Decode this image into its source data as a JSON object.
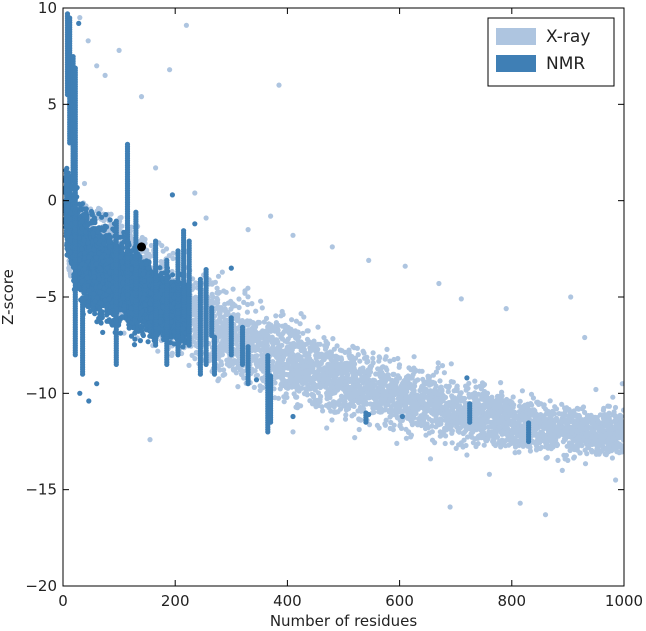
{
  "chart_data": {
    "type": "scatter",
    "xlabel": "Number of residues",
    "ylabel": "Z-score",
    "xlim": [
      0,
      1000
    ],
    "ylim": [
      -20,
      10
    ],
    "xticks": [
      0,
      200,
      400,
      600,
      800,
      1000
    ],
    "yticks": [
      10,
      5,
      0,
      -5,
      -10,
      -15,
      -20
    ],
    "legend_position": "top-right",
    "grid": false,
    "series": [
      {
        "name": "X-ray",
        "color": "#aec5e0",
        "trend": {
          "x": [
            10,
            100,
            200,
            300,
            400,
            500,
            600,
            700,
            800,
            900,
            1000
          ],
          "center": [
            -1.5,
            -3.5,
            -5.5,
            -7.0,
            -8.3,
            -9.3,
            -10.2,
            -10.9,
            -11.5,
            -11.9,
            -12.2
          ],
          "spread": [
            2.5,
            3.0,
            2.8,
            2.6,
            2.5,
            2.3,
            2.1,
            2.0,
            1.8,
            1.7,
            1.6
          ]
        },
        "outliers": [
          [
            30,
            9.5
          ],
          [
            45,
            8.3
          ],
          [
            60,
            7.0
          ],
          [
            75,
            6.5
          ],
          [
            100,
            7.8
          ],
          [
            140,
            5.4
          ],
          [
            190,
            6.8
          ],
          [
            220,
            9.1
          ],
          [
            385,
            6.0
          ],
          [
            165,
            1.7
          ],
          [
            235,
            0.4
          ],
          [
            255,
            -0.9
          ],
          [
            330,
            -1.5
          ],
          [
            370,
            -0.8
          ],
          [
            410,
            -1.8
          ],
          [
            480,
            -2.4
          ],
          [
            545,
            -3.1
          ],
          [
            610,
            -3.4
          ],
          [
            670,
            -4.3
          ],
          [
            710,
            -5.1
          ],
          [
            790,
            -5.6
          ],
          [
            905,
            -5.0
          ],
          [
            930,
            -7.1
          ],
          [
            950,
            -9.8
          ],
          [
            980,
            -10.2
          ],
          [
            997,
            -9.5
          ],
          [
            155,
            -12.4
          ],
          [
            985,
            -14.5
          ],
          [
            860,
            -16.3
          ],
          [
            815,
            -15.7
          ],
          [
            890,
            -14.0
          ],
          [
            760,
            -14.2
          ],
          [
            690,
            -15.9
          ],
          [
            720,
            -13.2
          ],
          [
            655,
            -13.4
          ],
          [
            595,
            -12.6
          ],
          [
            520,
            -12.3
          ],
          [
            470,
            -11.8
          ],
          [
            410,
            -12.0
          ]
        ]
      },
      {
        "name": "NMR",
        "color": "#3f7fb5",
        "trend": {
          "x": [
            5,
            20,
            40,
            60,
            80,
            100,
            120,
            140,
            160,
            180,
            200,
            220
          ],
          "center": [
            0.0,
            -2.0,
            -3.0,
            -3.5,
            -3.8,
            -4.2,
            -4.5,
            -4.8,
            -5.2,
            -5.5,
            -5.8,
            -6.0
          ],
          "spread": [
            2.3,
            2.8,
            3.0,
            2.9,
            2.8,
            2.6,
            2.5,
            2.3,
            2.2,
            2.0,
            1.9,
            1.8
          ]
        },
        "columns": [
          [
            8,
            5.5,
            9.8
          ],
          [
            12,
            3.0,
            9.5
          ],
          [
            18,
            1.0,
            7.5
          ],
          [
            22,
            -8.0,
            7.0
          ],
          [
            35,
            -9.0,
            -5.0
          ],
          [
            95,
            -8.5,
            -1.0
          ],
          [
            115,
            -5.0,
            3.0
          ],
          [
            130,
            -6.0,
            -0.5
          ],
          [
            165,
            -7.5,
            -2.0
          ],
          [
            185,
            -8.5,
            -3.0
          ],
          [
            205,
            -8.0,
            -2.5
          ],
          [
            215,
            -6.0,
            -1.5
          ],
          [
            225,
            -7.5,
            -2.0
          ],
          [
            245,
            -9.0,
            -4.0
          ],
          [
            255,
            -8.5,
            -3.5
          ],
          [
            265,
            -7.0,
            -5.5
          ],
          [
            270,
            -9.0,
            -7.0
          ],
          [
            300,
            -8.0,
            -6.0
          ],
          [
            320,
            -8.5,
            -6.5
          ],
          [
            330,
            -9.5,
            -7.5
          ],
          [
            365,
            -12.0,
            -8.0
          ],
          [
            370,
            -11.5,
            -9.0
          ],
          [
            540,
            -11.5,
            -11.0
          ],
          [
            725,
            -11.5,
            -10.5
          ],
          [
            830,
            -12.5,
            -11.5
          ]
        ],
        "outliers": [
          [
            195,
            0.3
          ],
          [
            235,
            -1.2
          ],
          [
            300,
            -3.5
          ],
          [
            345,
            -9.3
          ],
          [
            410,
            -11.2
          ],
          [
            545,
            -11.1
          ],
          [
            605,
            -11.2
          ],
          [
            720,
            -9.2
          ],
          [
            28,
            9.2
          ],
          [
            30,
            -10.0
          ],
          [
            60,
            -9.5
          ],
          [
            46,
            -10.4
          ]
        ]
      }
    ],
    "highlight_point": {
      "x": 140,
      "y": -2.4,
      "color": "#000000"
    }
  }
}
